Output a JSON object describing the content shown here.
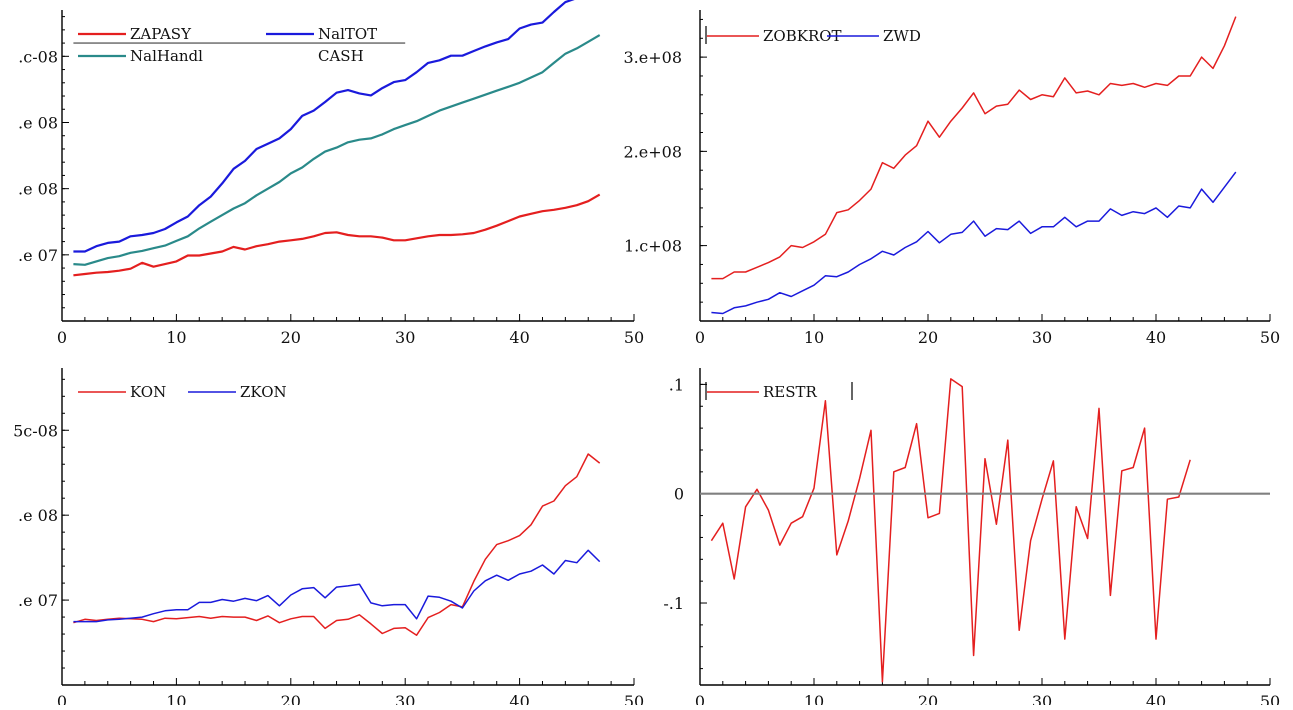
{
  "chart_data": [
    {
      "id": "tl",
      "type": "line",
      "title": "",
      "xlabel": "",
      "ylabel": "",
      "xlim": [
        0,
        50
      ],
      "ylim": [
        0,
        470000000
      ],
      "x_ticks": [
        0,
        10,
        20,
        30,
        40,
        50
      ],
      "x_tick_labels": [
        "0",
        "10",
        "20",
        "30",
        "40",
        "50"
      ],
      "y_ticks": [
        100000000,
        200000000,
        300000000,
        400000000,
        500000000
      ],
      "y_tick_labels": [
        ".e 07",
        ".e 08",
        ".e 08",
        ".c-08",
        ".e 08"
      ],
      "legend": {
        "placement": "top-left",
        "entries": [
          "ZAPASY",
          "NalTOT",
          "NalHandl",
          "CASH"
        ]
      },
      "series": [
        {
          "name": "ZAPASY",
          "color": "#e41f1f",
          "width": 2.2,
          "x": [
            1,
            2,
            3,
            4,
            5,
            6,
            7,
            8,
            9,
            10,
            11,
            12,
            13,
            14,
            15,
            16,
            17,
            18,
            19,
            20,
            21,
            22,
            23,
            24,
            25,
            26,
            27,
            28,
            29,
            30,
            31,
            32,
            33,
            34,
            35,
            36,
            37,
            38,
            39,
            40,
            41,
            42,
            43,
            44,
            45,
            46,
            47
          ],
          "values": [
            69,
            71,
            73,
            74,
            76,
            79,
            88,
            82,
            86,
            90,
            99,
            99,
            102,
            105,
            112,
            108,
            113,
            116,
            120,
            122,
            124,
            128,
            133,
            134,
            130,
            128,
            128,
            126,
            122,
            122,
            125,
            128,
            130,
            130,
            131,
            133,
            138,
            144,
            151,
            158,
            162,
            166,
            168,
            171,
            175,
            181,
            191
          ]
        },
        {
          "name": "NalTOT",
          "color": "#1a1adc",
          "width": 2.2,
          "x": [
            1,
            2,
            3,
            4,
            5,
            6,
            7,
            8,
            9,
            10,
            11,
            12,
            13,
            14,
            15,
            16,
            17,
            18,
            19,
            20,
            21,
            22,
            23,
            24,
            25,
            26,
            27,
            28,
            29,
            30,
            31,
            32,
            33,
            34,
            35,
            36,
            37,
            38,
            39,
            40,
            41,
            42,
            43,
            44,
            45,
            46,
            47
          ],
          "values": [
            105,
            105,
            113,
            118,
            120,
            128,
            130,
            133,
            139,
            149,
            158,
            175,
            188,
            208,
            230,
            242,
            260,
            268,
            276,
            290,
            310,
            318,
            331,
            345,
            349,
            344,
            341,
            352,
            361,
            364,
            376,
            390,
            394,
            401,
            401,
            408,
            415,
            421,
            426,
            442,
            448,
            451,
            467,
            482,
            488,
            500,
            510
          ]
        },
        {
          "name": "NalHandl",
          "color": "#2a8a8a",
          "width": 2.2,
          "x": [
            1,
            2,
            3,
            4,
            5,
            6,
            7,
            8,
            9,
            10,
            11,
            12,
            13,
            14,
            15,
            16,
            17,
            18,
            19,
            20,
            21,
            22,
            23,
            24,
            25,
            26,
            27,
            28,
            29,
            30,
            31,
            32,
            33,
            34,
            35,
            36,
            37,
            38,
            39,
            40,
            41,
            42,
            43,
            44,
            45,
            46,
            47
          ],
          "values": [
            86,
            85,
            90,
            95,
            98,
            103,
            106,
            110,
            114,
            121,
            128,
            140,
            150,
            160,
            170,
            178,
            190,
            200,
            210,
            223,
            232,
            245,
            256,
            262,
            270,
            274,
            276,
            282,
            290,
            296,
            302,
            310,
            318,
            324,
            330,
            336,
            342,
            348,
            354,
            360,
            368,
            376,
            390,
            404,
            412,
            422,
            432
          ]
        },
        {
          "name": "CASH",
          "color": "#7a7a7a",
          "width": 1.6,
          "x": [
            1,
            30
          ],
          "values": [
            420,
            420
          ]
        }
      ]
    },
    {
      "id": "tr",
      "type": "line",
      "title": "",
      "xlabel": "",
      "ylabel": "",
      "xlim": [
        0,
        50
      ],
      "ylim": [
        20000000,
        350000000
      ],
      "x_ticks": [
        0,
        10,
        20,
        30,
        40,
        50
      ],
      "x_tick_labels": [
        "0",
        "10",
        "20",
        "30",
        "40",
        "50"
      ],
      "y_ticks": [
        100000000,
        200000000,
        300000000
      ],
      "y_tick_labels": [
        "1.c+08",
        "2.e+08",
        "3.e+08"
      ],
      "legend": {
        "placement": "top-left",
        "entries": [
          "ZOBKROT",
          "ZWD"
        ]
      },
      "series": [
        {
          "name": "ZOBKROT",
          "color": "#e41f1f",
          "width": 1.5,
          "x": [
            1,
            2,
            3,
            4,
            5,
            6,
            7,
            8,
            9,
            10,
            11,
            12,
            13,
            14,
            15,
            16,
            17,
            18,
            19,
            20,
            21,
            22,
            23,
            24,
            25,
            26,
            27,
            28,
            29,
            30,
            31,
            32,
            33,
            34,
            35,
            36,
            37,
            38,
            39,
            40,
            41,
            42,
            43,
            44,
            45,
            46,
            47
          ],
          "values": [
            65,
            65,
            72,
            72,
            77,
            82,
            88,
            100,
            98,
            104,
            112,
            135,
            138,
            148,
            160,
            188,
            182,
            196,
            206,
            232,
            215,
            232,
            246,
            262,
            240,
            248,
            250,
            265,
            255,
            260,
            258,
            278,
            262,
            264,
            260,
            272,
            270,
            272,
            268,
            272,
            270,
            280,
            280,
            300,
            288,
            312,
            343
          ]
        },
        {
          "name": "ZWD",
          "color": "#1a1adc",
          "width": 1.5,
          "x": [
            1,
            2,
            3,
            4,
            5,
            6,
            7,
            8,
            9,
            10,
            11,
            12,
            13,
            14,
            15,
            16,
            17,
            18,
            19,
            20,
            21,
            22,
            23,
            24,
            25,
            26,
            27,
            28,
            29,
            30,
            31,
            32,
            33,
            34,
            35,
            36,
            37,
            38,
            39,
            40,
            41,
            42,
            43,
            44,
            45,
            46,
            47
          ],
          "values": [
            29,
            28,
            34,
            36,
            40,
            43,
            50,
            46,
            52,
            58,
            68,
            67,
            72,
            80,
            86,
            94,
            90,
            98,
            104,
            115,
            103,
            112,
            114,
            126,
            110,
            118,
            117,
            126,
            113,
            120,
            120,
            130,
            120,
            126,
            126,
            139,
            132,
            136,
            134,
            140,
            130,
            142,
            140,
            160,
            146,
            162,
            178
          ]
        }
      ]
    },
    {
      "id": "bl",
      "type": "line",
      "title": "",
      "xlabel": "",
      "ylabel": "",
      "xlim": [
        0,
        50
      ],
      "ylim": [
        0,
        560000000
      ],
      "x_ticks": [
        0,
        10,
        20,
        30,
        40,
        50
      ],
      "x_tick_labels": [
        "0",
        "10",
        "20",
        "30",
        "40",
        "50"
      ],
      "y_ticks": [
        150000000,
        300000000,
        450000000
      ],
      "y_tick_labels": [
        ".e 07",
        ".e 08",
        "5c-08"
      ],
      "legend": {
        "placement": "top-left",
        "entries": [
          "KON",
          "ZKON"
        ]
      },
      "series": [
        {
          "name": "KON",
          "color": "#e41f1f",
          "width": 1.5,
          "x": [
            1,
            2,
            3,
            4,
            5,
            6,
            7,
            8,
            9,
            10,
            11,
            12,
            13,
            14,
            15,
            16,
            17,
            18,
            19,
            20,
            21,
            22,
            23,
            24,
            25,
            26,
            27,
            28,
            29,
            30,
            31,
            32,
            33,
            34,
            35,
            36,
            37,
            38,
            39,
            40,
            41,
            42,
            43,
            44,
            45,
            46,
            47
          ],
          "values": [
            110,
            116,
            114,
            116,
            118,
            117,
            116,
            112,
            118,
            117,
            119,
            121,
            118,
            121,
            120,
            120,
            114,
            122,
            110,
            117,
            121,
            121,
            100,
            114,
            116,
            124,
            108,
            91,
            100,
            101,
            88,
            119,
            128,
            142,
            138,
            183,
            222,
            248,
            255,
            264,
            283,
            316,
            325,
            352,
            368,
            408,
            392
          ]
        },
        {
          "name": "ZKON",
          "color": "#1a1adc",
          "width": 1.5,
          "x": [
            1,
            2,
            3,
            4,
            5,
            6,
            7,
            8,
            9,
            10,
            11,
            12,
            13,
            14,
            15,
            16,
            17,
            18,
            19,
            20,
            21,
            22,
            23,
            24,
            25,
            26,
            27,
            28,
            29,
            30,
            31,
            32,
            33,
            34,
            35,
            36,
            37,
            38,
            39,
            40,
            41,
            42,
            43,
            44,
            45,
            46,
            47
          ],
          "values": [
            112,
            112,
            112,
            115,
            116,
            118,
            120,
            126,
            131,
            133,
            133,
            146,
            146,
            151,
            148,
            153,
            149,
            158,
            140,
            159,
            170,
            172,
            154,
            173,
            175,
            178,
            145,
            140,
            142,
            142,
            117,
            157,
            155,
            148,
            136,
            166,
            184,
            194,
            185,
            196,
            201,
            212,
            196,
            220,
            216,
            238,
            218
          ]
        }
      ]
    },
    {
      "id": "br",
      "type": "line",
      "title": "",
      "xlabel": "",
      "ylabel": "",
      "xlim": [
        0,
        50
      ],
      "ylim": [
        -0.175,
        0.115
      ],
      "x_ticks": [
        0,
        10,
        20,
        30,
        40,
        50
      ],
      "x_tick_labels": [
        "0",
        "10",
        "20",
        "30",
        "40",
        "50"
      ],
      "y_ticks": [
        -0.1,
        0,
        0.1
      ],
      "y_tick_labels": [
        "-.1",
        "0",
        ".1"
      ],
      "legend": {
        "placement": "top-left",
        "entries": [
          "RESTR"
        ]
      },
      "series": [
        {
          "name": "RESTR",
          "color": "#e41f1f",
          "width": 1.5,
          "x": [
            1,
            2,
            3,
            4,
            5,
            6,
            7,
            8,
            9,
            10,
            11,
            12,
            13,
            14,
            15,
            16,
            17,
            18,
            19,
            20,
            21,
            22,
            23,
            24,
            25,
            26,
            27,
            28,
            29,
            30,
            31,
            32,
            33,
            34,
            35,
            36,
            37,
            38,
            39,
            40,
            41,
            42,
            43
          ],
          "values": [
            -0.043,
            -0.027,
            -0.078,
            -0.012,
            0.004,
            -0.015,
            -0.047,
            -0.027,
            -0.021,
            0.005,
            0.085,
            -0.056,
            -0.025,
            0.014,
            0.058,
            -0.172,
            0.02,
            0.024,
            0.064,
            -0.022,
            -0.018,
            0.105,
            0.098,
            -0.148,
            0.032,
            -0.028,
            0.049,
            -0.125,
            -0.043,
            -0.005,
            0.03,
            -0.133,
            -0.012,
            -0.041,
            0.078,
            -0.093,
            0.021,
            0.024,
            0.06,
            -0.133,
            -0.005,
            -0.003,
            0.031
          ]
        },
        {
          "name": "zero-line",
          "color": "#808080",
          "width": 2.2,
          "x": [
            0,
            50
          ],
          "values": [
            0,
            0
          ]
        }
      ]
    }
  ]
}
